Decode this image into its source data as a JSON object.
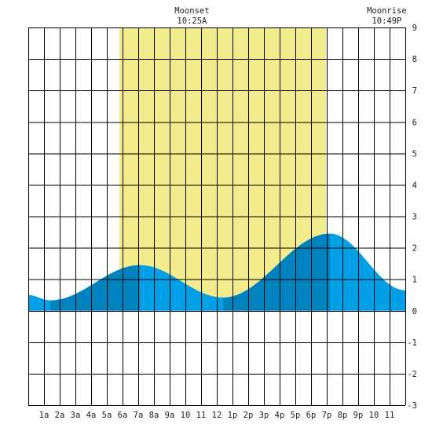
{
  "chart_data": {
    "type": "area",
    "title": "",
    "xlabel": "",
    "ylabel": "",
    "xlim": [
      0,
      24
    ],
    "ylim": [
      -3,
      9
    ],
    "y_ticks": [
      9,
      8,
      7,
      6,
      5,
      4,
      3,
      2,
      1,
      0,
      -1,
      -2,
      -3
    ],
    "x_tick_labels": [
      "1a",
      "2a",
      "3a",
      "4a",
      "5a",
      "6a",
      "7a",
      "8a",
      "9a",
      "10",
      "11",
      "12",
      "1p",
      "2p",
      "3p",
      "4p",
      "5p",
      "6p",
      "7p",
      "8p",
      "9p",
      "10",
      "11"
    ],
    "grid": true,
    "daylight": {
      "start_hour": 5.8,
      "end_hour": 18.95
    },
    "moon_events": [
      {
        "label": "Moonset",
        "time": "10:25A",
        "hour": 10.42
      },
      {
        "label": "Moonrise",
        "time": "10:49P",
        "hour": 22.82
      }
    ],
    "tide_extremes": [
      {
        "hour": 0.0,
        "height": 0.5
      },
      {
        "hour": 1.4,
        "height": 0.33
      },
      {
        "hour": 7.1,
        "height": 1.45
      },
      {
        "hour": 12.4,
        "height": 0.42
      },
      {
        "hour": 19.2,
        "height": 2.45
      },
      {
        "hour": 24.0,
        "height": 0.65
      }
    ],
    "colors": {
      "daylight": "#f2ec8c",
      "tide_rising": "#0082be",
      "tide_falling": "#00a0e6",
      "grid": "#000000",
      "text": "#222222"
    }
  }
}
